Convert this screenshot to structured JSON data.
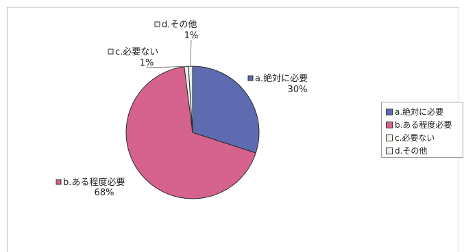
{
  "chart_data": {
    "type": "pie",
    "title": "",
    "slices": [
      {
        "key": "a",
        "label": "a.絶対に必要",
        "value": 30,
        "value_label": "30%",
        "color": "#5f6bb0"
      },
      {
        "key": "b",
        "label": "b.ある程度必要",
        "value": 68,
        "value_label": "68%",
        "color": "#d6628e"
      },
      {
        "key": "c",
        "label": "c.必要ない",
        "value": 1,
        "value_label": "1%",
        "color": "#f2f2e6"
      },
      {
        "key": "d",
        "label": "d.その他",
        "value": 1,
        "value_label": "1%",
        "color": "#e6f0ee"
      }
    ],
    "legend": {
      "placement": "right",
      "entries": [
        "a.絶対に必要",
        "b.ある程度必要",
        "c.必要ない",
        "d.その他"
      ]
    }
  }
}
